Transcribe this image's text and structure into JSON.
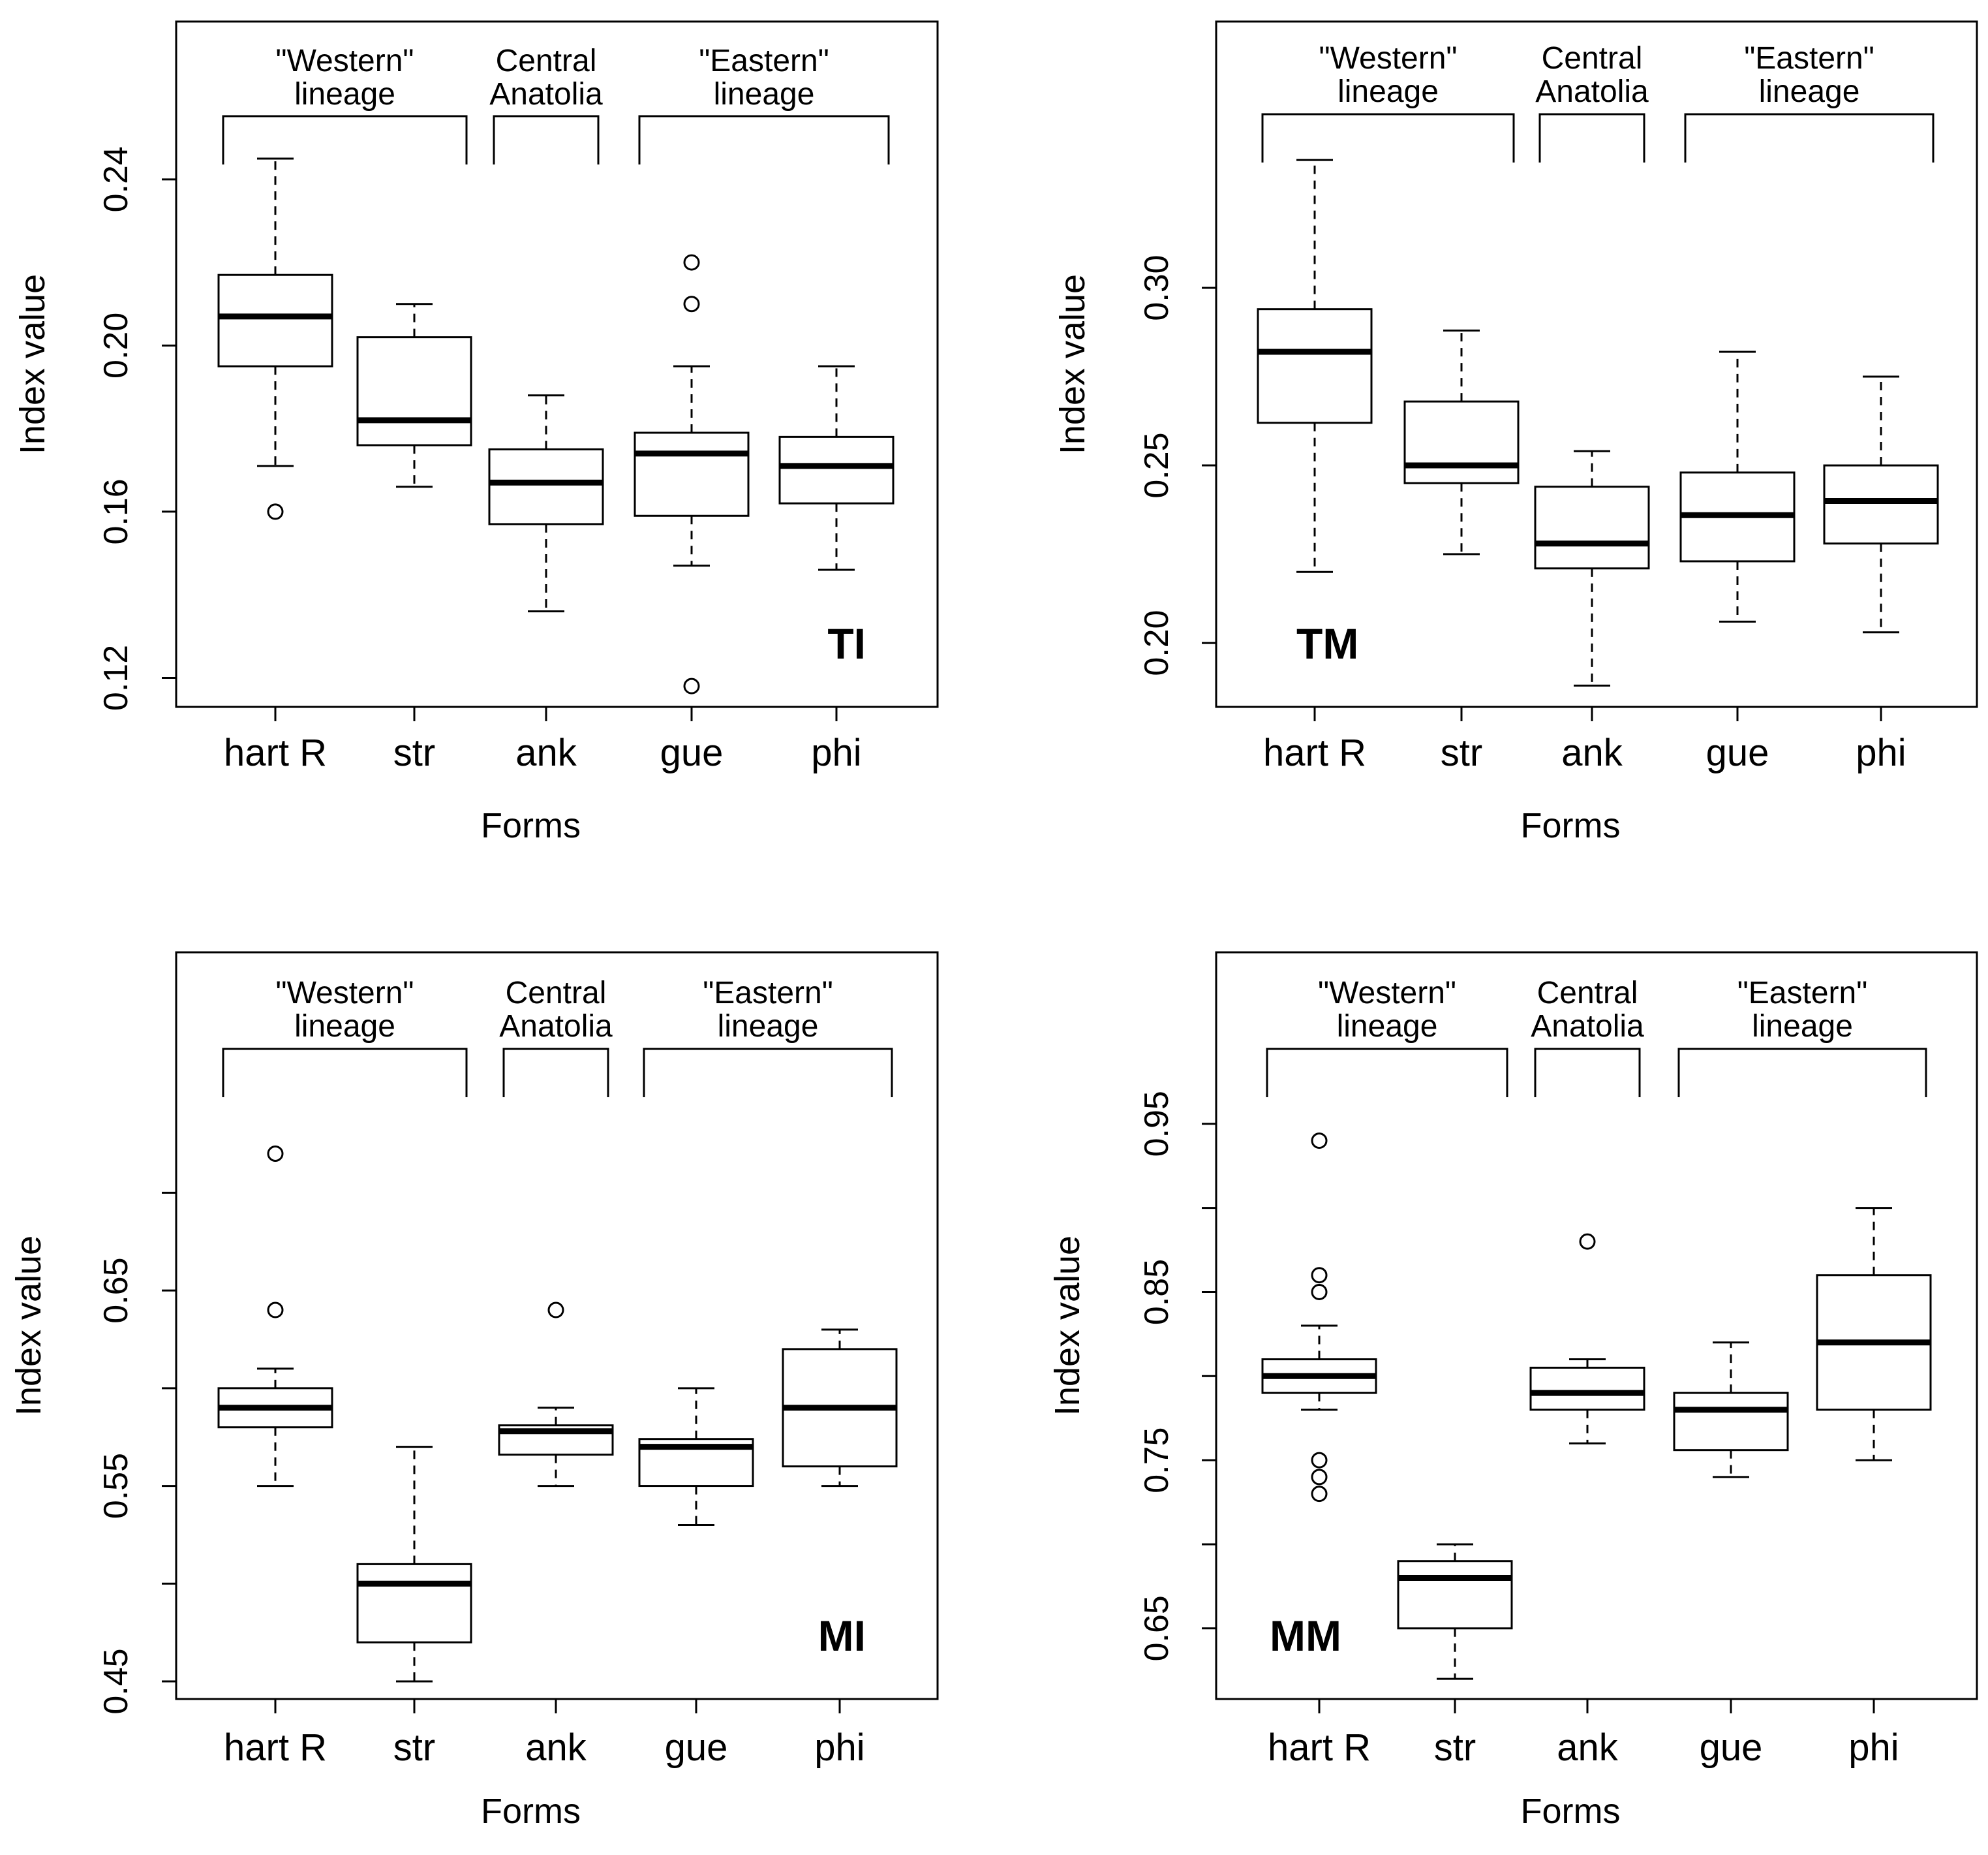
{
  "figure": {
    "panel_order": [
      "top-left",
      "top-right",
      "bottom-left",
      "bottom-right"
    ]
  },
  "chart_data": [
    {
      "type": "boxplot",
      "panel_tag": "TI",
      "tag_position": "bottom-right",
      "xlabel": "Forms",
      "ylabel": "Index value",
      "categories": [
        "hart R",
        "str",
        "ank",
        "gue",
        "phi"
      ],
      "ylim": [
        0.113,
        0.278
      ],
      "yticks": [
        0.12,
        0.16,
        0.2,
        0.24
      ],
      "ytick_labels": [
        "0.12",
        "0.16",
        "0.20",
        "0.24"
      ],
      "groups": [
        {
          "lines": [
            "\"Western\"",
            "lineage"
          ],
          "from": 0,
          "to": 1
        },
        {
          "lines": [
            "Central",
            "Anatolia"
          ],
          "from": 2,
          "to": 2
        },
        {
          "lines": [
            "\"Eastern\"",
            "lineage"
          ],
          "from": 3,
          "to": 4
        }
      ],
      "boxes": [
        {
          "name": "hart R",
          "whisker_low": 0.171,
          "q1": 0.195,
          "median": 0.207,
          "q3": 0.217,
          "whisker_high": 0.245,
          "outliers": [
            0.16
          ]
        },
        {
          "name": "str",
          "whisker_low": 0.166,
          "q1": 0.176,
          "median": 0.182,
          "q3": 0.202,
          "whisker_high": 0.21,
          "outliers": []
        },
        {
          "name": "ank",
          "whisker_low": 0.136,
          "q1": 0.157,
          "median": 0.167,
          "q3": 0.175,
          "whisker_high": 0.188,
          "outliers": []
        },
        {
          "name": "gue",
          "whisker_low": 0.147,
          "q1": 0.159,
          "median": 0.174,
          "q3": 0.179,
          "whisker_high": 0.195,
          "outliers": [
            0.22,
            0.21,
            0.118
          ]
        },
        {
          "name": "phi",
          "whisker_low": 0.146,
          "q1": 0.162,
          "median": 0.171,
          "q3": 0.178,
          "whisker_high": 0.195,
          "outliers": []
        }
      ]
    },
    {
      "type": "boxplot",
      "panel_tag": "TM",
      "tag_position": "bottom-left",
      "xlabel": "Forms",
      "ylabel": "Index value",
      "categories": [
        "hart R",
        "str",
        "ank",
        "gue",
        "phi"
      ],
      "ylim": [
        0.182,
        0.375
      ],
      "yticks": [
        0.2,
        0.25,
        0.3
      ],
      "ytick_labels": [
        "0.20",
        "0.25",
        "0.30"
      ],
      "groups": [
        {
          "lines": [
            "\"Western\"",
            "lineage"
          ],
          "from": 0,
          "to": 1
        },
        {
          "lines": [
            "Central",
            "Anatolia"
          ],
          "from": 2,
          "to": 2
        },
        {
          "lines": [
            "\"Eastern\"",
            "lineage"
          ],
          "from": 3,
          "to": 4
        }
      ],
      "boxes": [
        {
          "name": "hart R",
          "whisker_low": 0.22,
          "q1": 0.262,
          "median": 0.282,
          "q3": 0.294,
          "whisker_high": 0.336,
          "outliers": []
        },
        {
          "name": "str",
          "whisker_low": 0.225,
          "q1": 0.245,
          "median": 0.25,
          "q3": 0.268,
          "whisker_high": 0.288,
          "outliers": []
        },
        {
          "name": "ank",
          "whisker_low": 0.188,
          "q1": 0.221,
          "median": 0.228,
          "q3": 0.244,
          "whisker_high": 0.254,
          "outliers": []
        },
        {
          "name": "gue",
          "whisker_low": 0.206,
          "q1": 0.223,
          "median": 0.236,
          "q3": 0.248,
          "whisker_high": 0.282,
          "outliers": []
        },
        {
          "name": "phi",
          "whisker_low": 0.203,
          "q1": 0.228,
          "median": 0.24,
          "q3": 0.25,
          "whisker_high": 0.275,
          "outliers": []
        }
      ]
    },
    {
      "type": "boxplot",
      "panel_tag": "MI",
      "tag_position": "bottom-right",
      "xlabel": "Forms",
      "ylabel": "Index value",
      "categories": [
        "hart R",
        "str",
        "ank",
        "gue",
        "phi"
      ],
      "ylim": [
        0.441,
        0.823
      ],
      "yticks": [
        0.45,
        0.5,
        0.55,
        0.6,
        0.65,
        0.7
      ],
      "ytick_labels": [
        "0.45",
        "",
        "0.55",
        "",
        "0.65",
        ""
      ],
      "groups": [
        {
          "lines": [
            "\"Western\"",
            "lineage"
          ],
          "from": 0,
          "to": 1
        },
        {
          "lines": [
            "Central",
            "Anatolia"
          ],
          "from": 2,
          "to": 2
        },
        {
          "lines": [
            "\"Eastern\"",
            "lineage"
          ],
          "from": 3,
          "to": 4
        }
      ],
      "boxes": [
        {
          "name": "hart R",
          "whisker_low": 0.55,
          "q1": 0.58,
          "median": 0.59,
          "q3": 0.6,
          "whisker_high": 0.61,
          "outliers": [
            0.72,
            0.64
          ]
        },
        {
          "name": "str",
          "whisker_low": 0.45,
          "q1": 0.47,
          "median": 0.5,
          "q3": 0.51,
          "whisker_high": 0.57,
          "outliers": []
        },
        {
          "name": "ank",
          "whisker_low": 0.55,
          "q1": 0.566,
          "median": 0.578,
          "q3": 0.581,
          "whisker_high": 0.59,
          "outliers": [
            0.64
          ]
        },
        {
          "name": "gue",
          "whisker_low": 0.53,
          "q1": 0.55,
          "median": 0.57,
          "q3": 0.574,
          "whisker_high": 0.6,
          "outliers": []
        },
        {
          "name": "phi",
          "whisker_low": 0.55,
          "q1": 0.56,
          "median": 0.59,
          "q3": 0.62,
          "whisker_high": 0.63,
          "outliers": []
        }
      ]
    },
    {
      "type": "boxplot",
      "panel_tag": "MM",
      "tag_position": "bottom-left",
      "xlabel": "Forms",
      "ylabel": "Index value",
      "categories": [
        "hart R",
        "str",
        "ank",
        "gue",
        "phi"
      ],
      "ylim": [
        0.608,
        1.052
      ],
      "yticks": [
        0.65,
        0.7,
        0.75,
        0.8,
        0.85,
        0.9,
        0.95
      ],
      "ytick_labels": [
        "0.65",
        "",
        "0.75",
        "",
        "0.85",
        "",
        "0.95"
      ],
      "groups": [
        {
          "lines": [
            "\"Western\"",
            "lineage"
          ],
          "from": 0,
          "to": 1
        },
        {
          "lines": [
            "Central",
            "Anatolia"
          ],
          "from": 2,
          "to": 2
        },
        {
          "lines": [
            "\"Eastern\"",
            "lineage"
          ],
          "from": 3,
          "to": 4
        }
      ],
      "boxes": [
        {
          "name": "hart R",
          "whisker_low": 0.78,
          "q1": 0.79,
          "median": 0.8,
          "q3": 0.81,
          "whisker_high": 0.83,
          "outliers": [
            0.94,
            0.86,
            0.85,
            0.75,
            0.74,
            0.73
          ]
        },
        {
          "name": "str",
          "whisker_low": 0.62,
          "q1": 0.65,
          "median": 0.68,
          "q3": 0.69,
          "whisker_high": 0.7,
          "outliers": []
        },
        {
          "name": "ank",
          "whisker_low": 0.76,
          "q1": 0.78,
          "median": 0.79,
          "q3": 0.805,
          "whisker_high": 0.81,
          "outliers": [
            0.88
          ]
        },
        {
          "name": "gue",
          "whisker_low": 0.74,
          "q1": 0.756,
          "median": 0.78,
          "q3": 0.79,
          "whisker_high": 0.82,
          "outliers": []
        },
        {
          "name": "phi",
          "whisker_low": 0.75,
          "q1": 0.78,
          "median": 0.82,
          "q3": 0.86,
          "whisker_high": 0.9,
          "outliers": []
        }
      ]
    }
  ]
}
